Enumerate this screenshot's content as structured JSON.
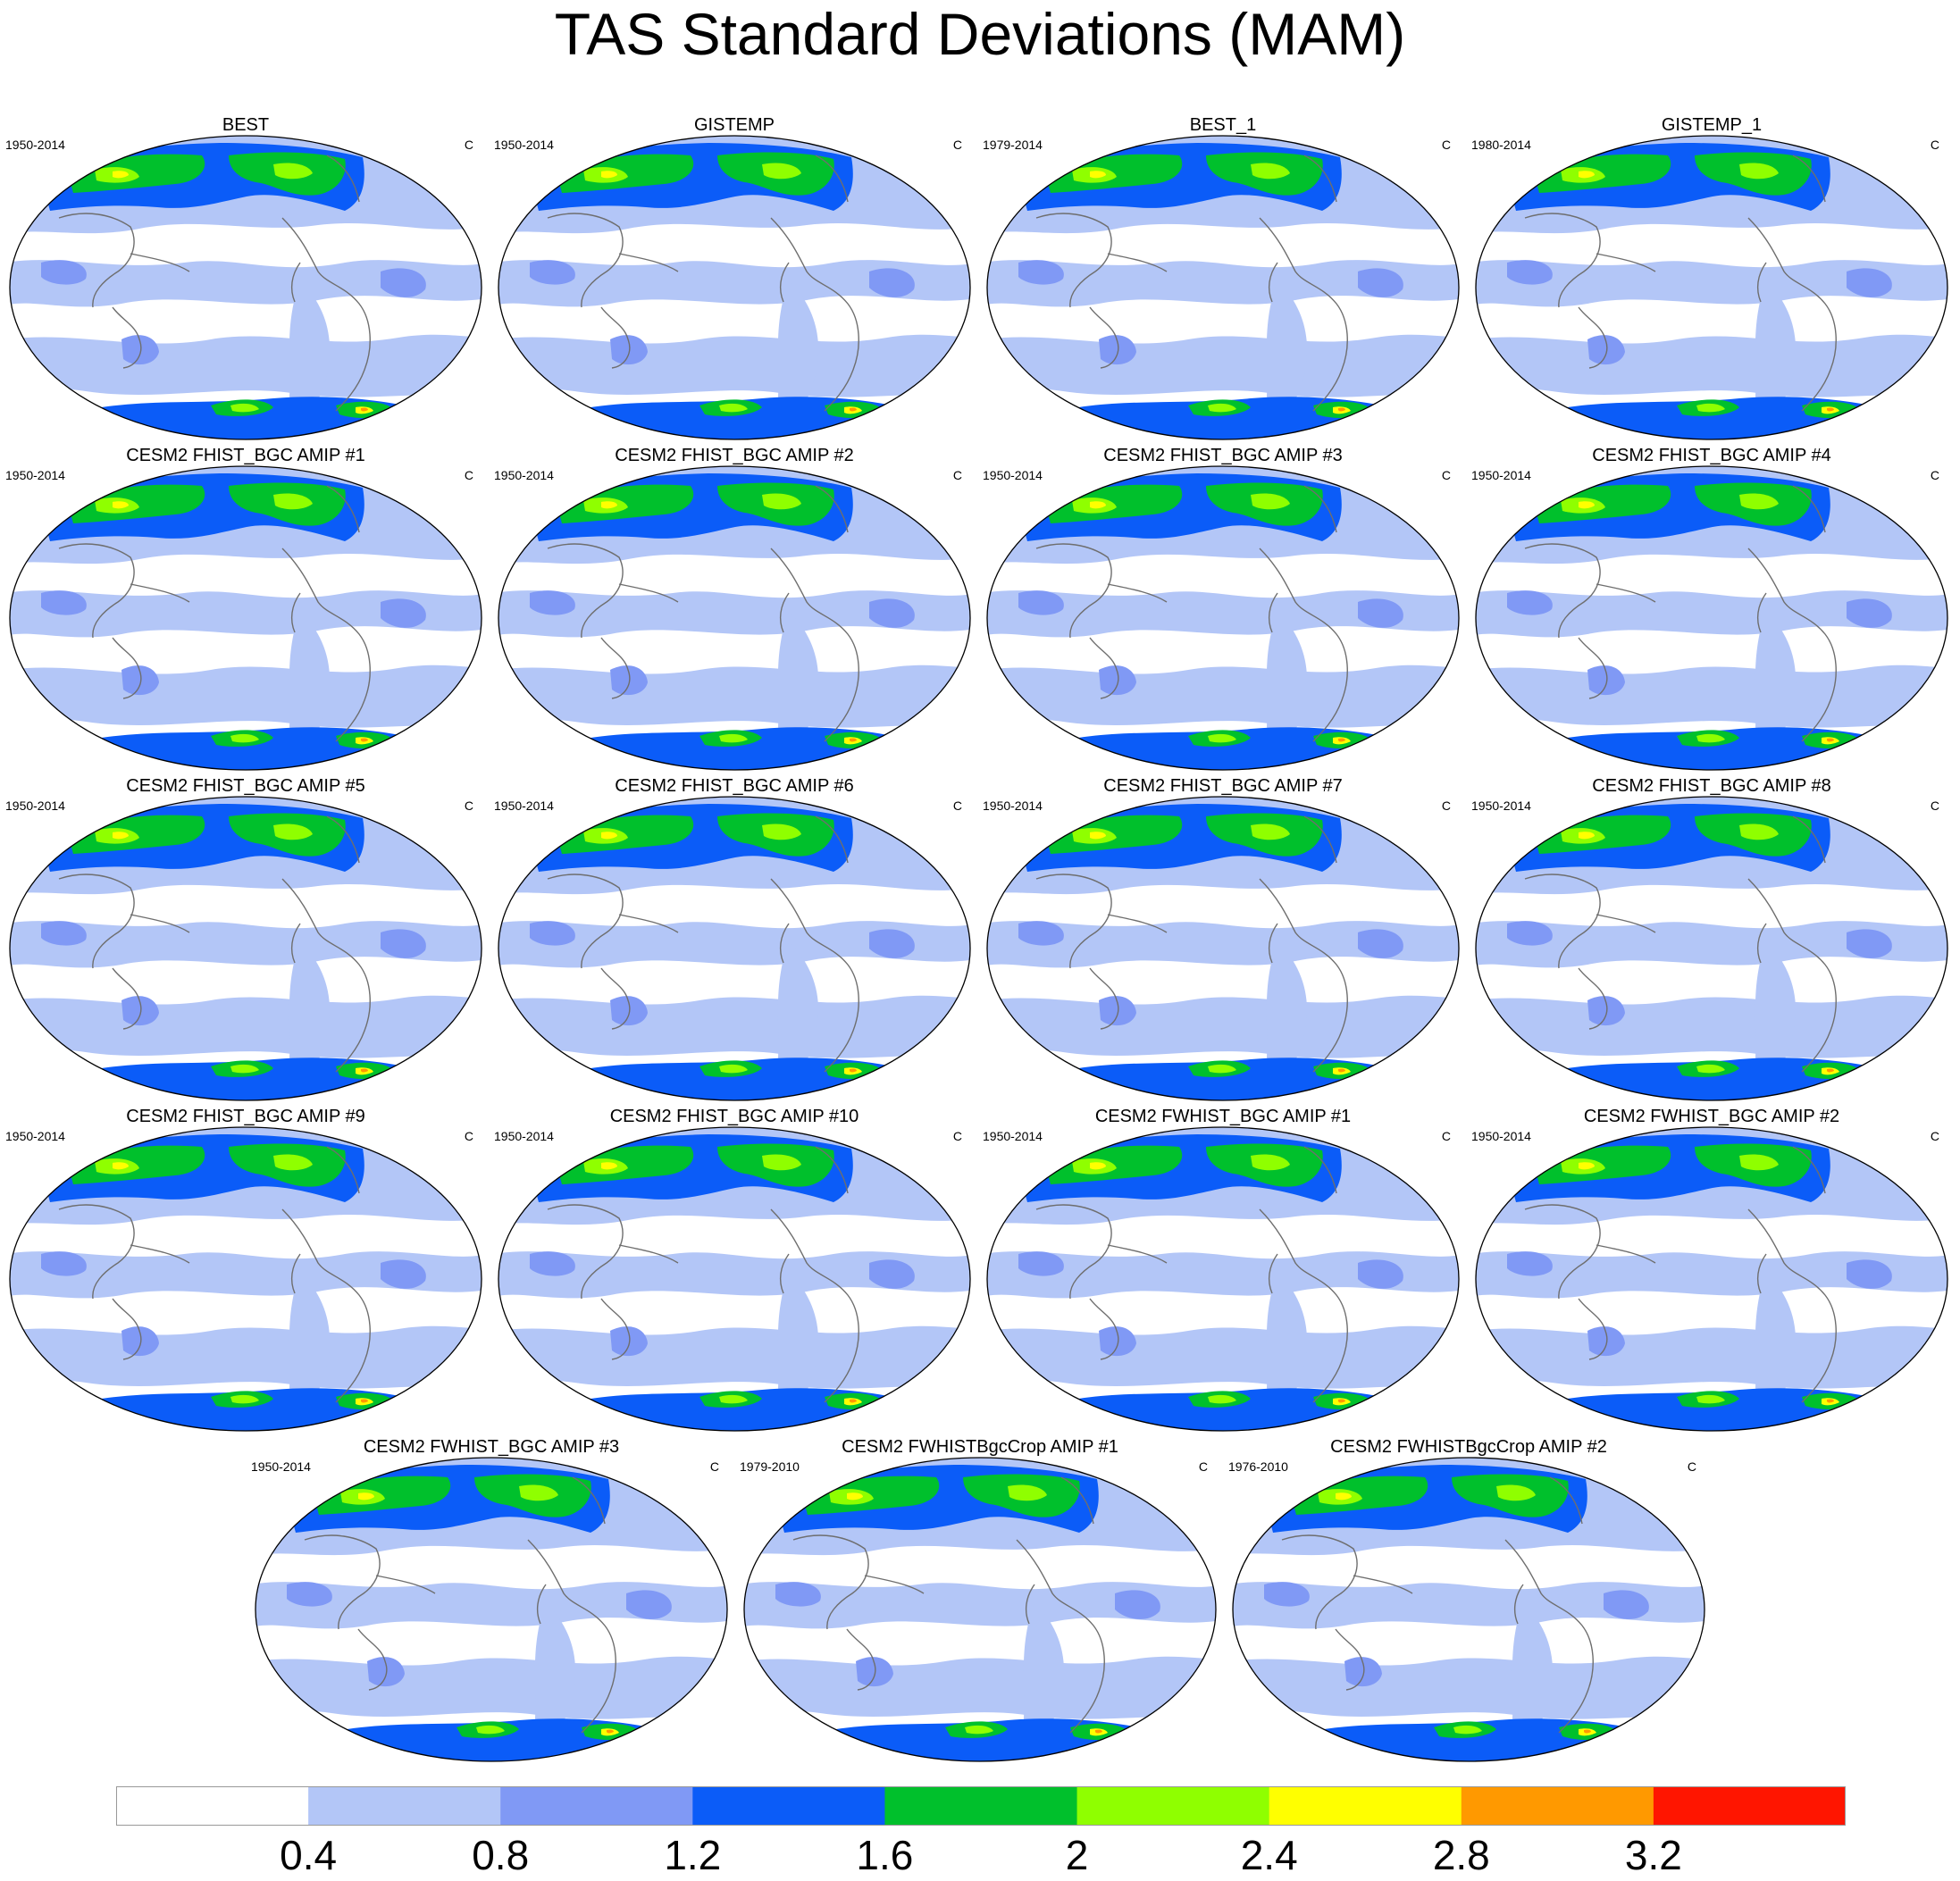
{
  "title": "TAS Standard Deviations (MAM)",
  "colors": {
    "levels": [
      "#ffffff",
      "#b3c6f7",
      "#8099f5",
      "#0b5cf8",
      "#00c02c",
      "#8fff00",
      "#ffff00",
      "#ff9900",
      "#ff1500"
    ],
    "coastline": "#6e6e6e",
    "outline": "#000000"
  },
  "colorbar": {
    "labels": [
      "0.4",
      "0.8",
      "1.2",
      "1.6",
      "2",
      "2.4",
      "2.8",
      "3.2"
    ]
  },
  "panels": [
    {
      "title": "BEST",
      "years": "1950-2014",
      "units": "C"
    },
    {
      "title": "GISTEMP",
      "years": "1950-2014",
      "units": "C"
    },
    {
      "title": "BEST_1",
      "years": "1979-2014",
      "units": "C"
    },
    {
      "title": "GISTEMP_1",
      "years": "1980-2014",
      "units": "C"
    },
    {
      "title": "CESM2 FHIST_BGC AMIP #1",
      "years": "1950-2014",
      "units": "C"
    },
    {
      "title": "CESM2 FHIST_BGC AMIP #2",
      "years": "1950-2014",
      "units": "C"
    },
    {
      "title": "CESM2 FHIST_BGC AMIP #3",
      "years": "1950-2014",
      "units": "C"
    },
    {
      "title": "CESM2 FHIST_BGC AMIP #4",
      "years": "1950-2014",
      "units": "C"
    },
    {
      "title": "CESM2 FHIST_BGC AMIP #5",
      "years": "1950-2014",
      "units": "C"
    },
    {
      "title": "CESM2 FHIST_BGC AMIP #6",
      "years": "1950-2014",
      "units": "C"
    },
    {
      "title": "CESM2 FHIST_BGC AMIP #7",
      "years": "1950-2014",
      "units": "C"
    },
    {
      "title": "CESM2 FHIST_BGC AMIP #8",
      "years": "1950-2014",
      "units": "C"
    },
    {
      "title": "CESM2 FHIST_BGC AMIP #9",
      "years": "1950-2014",
      "units": "C"
    },
    {
      "title": "CESM2 FHIST_BGC AMIP #10",
      "years": "1950-2014",
      "units": "C"
    },
    {
      "title": "CESM2 FWHIST_BGC AMIP #1",
      "years": "1950-2014",
      "units": "C"
    },
    {
      "title": "CESM2 FWHIST_BGC AMIP #2",
      "years": "1950-2014",
      "units": "C"
    },
    {
      "title": "CESM2 FWHIST_BGC AMIP #3",
      "years": "1950-2014",
      "units": "C"
    },
    {
      "title": "CESM2 FWHISTBgcCrop AMIP #1",
      "years": "1979-2010",
      "units": "C"
    },
    {
      "title": "CESM2 FWHISTBgcCrop AMIP #2",
      "years": "1976-2010",
      "units": "C"
    }
  ]
}
